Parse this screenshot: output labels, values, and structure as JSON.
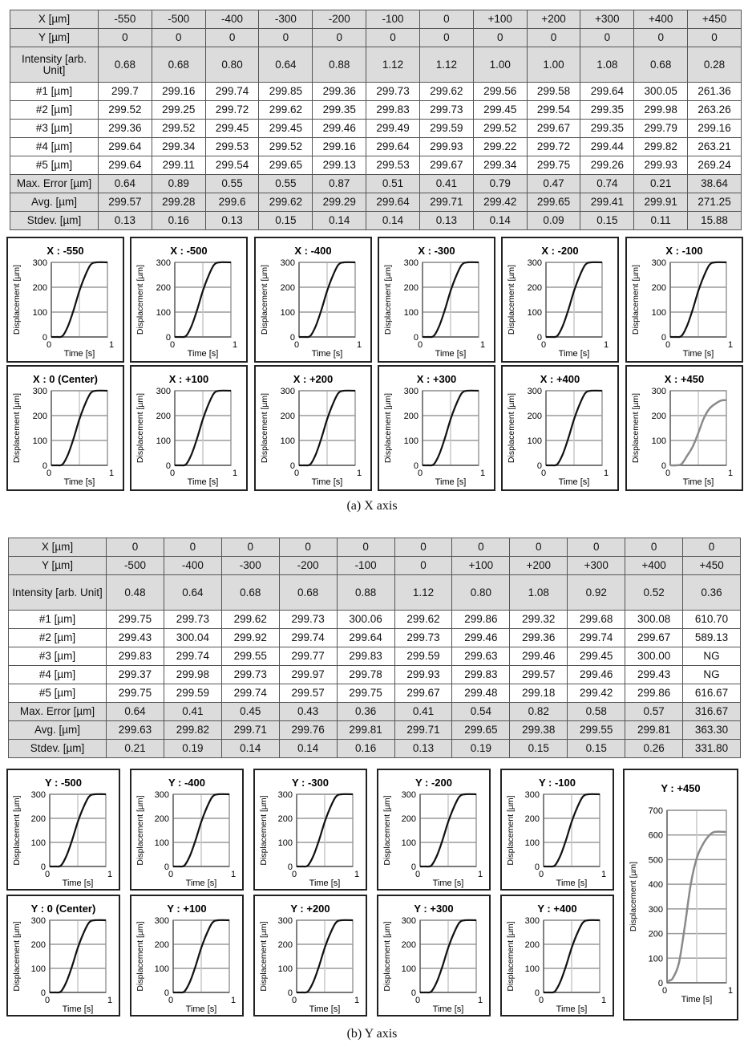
{
  "panel_a": {
    "caption": "(a) X axis",
    "table": {
      "rows": [
        {
          "label": "X [µm]",
          "values": [
            "-550",
            "-500",
            "-400",
            "-300",
            "-200",
            "-100",
            "0",
            "+100",
            "+200",
            "+300",
            "+400",
            "+450"
          ]
        },
        {
          "label": "Y [µm]",
          "values": [
            "0",
            "0",
            "0",
            "0",
            "0",
            "0",
            "0",
            "0",
            "0",
            "0",
            "0",
            "0"
          ]
        },
        {
          "label": "Intensity [arb. Unit]",
          "values": [
            "0.68",
            "0.68",
            "0.80",
            "0.64",
            "0.88",
            "1.12",
            "1.12",
            "1.00",
            "1.00",
            "1.08",
            "0.68",
            "0.28"
          ]
        },
        {
          "label": "#1 [µm]",
          "values": [
            "299.7",
            "299.16",
            "299.74",
            "299.85",
            "299.36",
            "299.73",
            "299.62",
            "299.56",
            "299.58",
            "299.64",
            "300.05",
            "261.36"
          ]
        },
        {
          "label": "#2 [µm]",
          "values": [
            "299.52",
            "299.25",
            "299.72",
            "299.62",
            "299.35",
            "299.83",
            "299.73",
            "299.45",
            "299.54",
            "299.35",
            "299.98",
            "263.26"
          ]
        },
        {
          "label": "#3 [µm]",
          "values": [
            "299.36",
            "299.52",
            "299.45",
            "299.45",
            "299.46",
            "299.49",
            "299.59",
            "299.52",
            "299.67",
            "299.35",
            "299.79",
            "299.16"
          ]
        },
        {
          "label": "#4 [µm]",
          "values": [
            "299.64",
            "299.34",
            "299.53",
            "299.52",
            "299.16",
            "299.64",
            "299.93",
            "299.22",
            "299.72",
            "299.44",
            "299.82",
            "263.21"
          ]
        },
        {
          "label": "#5 [µm]",
          "values": [
            "299.64",
            "299.11",
            "299.54",
            "299.65",
            "299.13",
            "299.53",
            "299.67",
            "299.34",
            "299.75",
            "299.26",
            "299.93",
            "269.24"
          ]
        },
        {
          "label": "Max. Error [µm]",
          "values": [
            "0.64",
            "0.89",
            "0.55",
            "0.55",
            "0.87",
            "0.51",
            "0.41",
            "0.79",
            "0.47",
            "0.74",
            "0.21",
            "38.64"
          ]
        },
        {
          "label": "Avg. [µm]",
          "values": [
            "299.57",
            "299.28",
            "299.6",
            "299.62",
            "299.29",
            "299.64",
            "299.71",
            "299.42",
            "299.65",
            "299.41",
            "299.91",
            "271.25"
          ]
        },
        {
          "label": "Stdev. [µm]",
          "values": [
            "0.13",
            "0.16",
            "0.13",
            "0.15",
            "0.14",
            "0.14",
            "0.13",
            "0.14",
            "0.09",
            "0.15",
            "0.11",
            "15.88"
          ]
        }
      ]
    }
  },
  "panel_b": {
    "caption": "(b) Y axis",
    "table": {
      "rows": [
        {
          "label": "X [µm]",
          "values": [
            "0",
            "0",
            "0",
            "0",
            "0",
            "0",
            "0",
            "0",
            "0",
            "0",
            "0"
          ]
        },
        {
          "label": "Y [µm]",
          "values": [
            "-500",
            "-400",
            "-300",
            "-200",
            "-100",
            "0",
            "+100",
            "+200",
            "+300",
            "+400",
            "+450"
          ]
        },
        {
          "label": "Intensity [arb. Unit]",
          "values": [
            "0.48",
            "0.64",
            "0.68",
            "0.68",
            "0.88",
            "1.12",
            "0.80",
            "1.08",
            "0.92",
            "0.52",
            "0.36"
          ]
        },
        {
          "label": "#1 [µm]",
          "values": [
            "299.75",
            "299.73",
            "299.62",
            "299.73",
            "300.06",
            "299.62",
            "299.86",
            "299.32",
            "299.68",
            "300.08",
            "610.70"
          ]
        },
        {
          "label": "#2 [µm]",
          "values": [
            "299.43",
            "300.04",
            "299.92",
            "299.74",
            "299.64",
            "299.73",
            "299.46",
            "299.36",
            "299.74",
            "299.67",
            "589.13"
          ]
        },
        {
          "label": "#3 [µm]",
          "values": [
            "299.83",
            "299.74",
            "299.55",
            "299.77",
            "299.83",
            "299.59",
            "299.63",
            "299.46",
            "299.45",
            "300.00",
            "NG"
          ]
        },
        {
          "label": "#4 [µm]",
          "values": [
            "299.37",
            "299.98",
            "299.73",
            "299.97",
            "299.78",
            "299.93",
            "299.83",
            "299.57",
            "299.46",
            "299.43",
            "NG"
          ]
        },
        {
          "label": "#5 [µm]",
          "values": [
            "299.75",
            "299.59",
            "299.74",
            "299.57",
            "299.75",
            "299.67",
            "299.48",
            "299.18",
            "299.42",
            "299.86",
            "616.67"
          ]
        },
        {
          "label": "Max. Error [µm]",
          "values": [
            "0.64",
            "0.41",
            "0.45",
            "0.43",
            "0.36",
            "0.41",
            "0.54",
            "0.82",
            "0.58",
            "0.57",
            "316.67"
          ]
        },
        {
          "label": "Avg. [µm]",
          "values": [
            "299.63",
            "299.82",
            "299.71",
            "299.76",
            "299.81",
            "299.71",
            "299.65",
            "299.38",
            "299.55",
            "299.81",
            "363.30"
          ]
        },
        {
          "label": "Stdev. [µm]",
          "values": [
            "0.21",
            "0.19",
            "0.14",
            "0.14",
            "0.16",
            "0.13",
            "0.19",
            "0.15",
            "0.15",
            "0.26",
            "331.80"
          ]
        }
      ]
    }
  },
  "chart_data": {
    "type": "line",
    "xlabel": "Time [s]",
    "ylabel": "Displacement [µm]",
    "xlim": [
      0,
      1
    ],
    "xticks": [
      "0",
      "1"
    ],
    "grid": true,
    "colors": {
      "normal": "#111111",
      "failed": "#8a8a8a"
    },
    "standard_curve": [
      [
        0,
        0
      ],
      [
        0.1,
        0
      ],
      [
        0.2,
        4
      ],
      [
        0.3,
        45
      ],
      [
        0.4,
        110
      ],
      [
        0.5,
        185
      ],
      [
        0.6,
        245
      ],
      [
        0.7,
        290
      ],
      [
        0.8,
        300
      ],
      [
        1,
        300
      ]
    ],
    "panel_a_charts": [
      {
        "title": "X : -550",
        "ylim": [
          0,
          300
        ],
        "yticks": [
          "0",
          "100",
          "200",
          "300"
        ],
        "curve": "standard"
      },
      {
        "title": "X : -500",
        "ylim": [
          0,
          300
        ],
        "yticks": [
          "0",
          "100",
          "200",
          "300"
        ],
        "curve": "standard"
      },
      {
        "title": "X : -400",
        "ylim": [
          0,
          300
        ],
        "yticks": [
          "0",
          "100",
          "200",
          "300"
        ],
        "curve": "standard"
      },
      {
        "title": "X : -300",
        "ylim": [
          0,
          300
        ],
        "yticks": [
          "0",
          "100",
          "200",
          "300"
        ],
        "curve": "standard"
      },
      {
        "title": "X : -200",
        "ylim": [
          0,
          300
        ],
        "yticks": [
          "0",
          "100",
          "200",
          "300"
        ],
        "curve": "standard"
      },
      {
        "title": "X : -100",
        "ylim": [
          0,
          300
        ],
        "yticks": [
          "0",
          "100",
          "200",
          "300"
        ],
        "curve": "standard"
      },
      {
        "title": "X : 0 (Center)",
        "ylim": [
          0,
          300
        ],
        "yticks": [
          "0",
          "100",
          "200",
          "300"
        ],
        "curve": "standard"
      },
      {
        "title": "X : +100",
        "ylim": [
          0,
          300
        ],
        "yticks": [
          "0",
          "100",
          "200",
          "300"
        ],
        "curve": "standard"
      },
      {
        "title": "X : +200",
        "ylim": [
          0,
          300
        ],
        "yticks": [
          "0",
          "100",
          "200",
          "300"
        ],
        "curve": "standard"
      },
      {
        "title": "X : +300",
        "ylim": [
          0,
          300
        ],
        "yticks": [
          "0",
          "100",
          "200",
          "300"
        ],
        "curve": "standard"
      },
      {
        "title": "X : +400",
        "ylim": [
          0,
          300
        ],
        "yticks": [
          "0",
          "100",
          "200",
          "300"
        ],
        "curve": "standard"
      },
      {
        "title": "X : +450",
        "ylim": [
          0,
          300
        ],
        "yticks": [
          "0",
          "100",
          "200",
          "300"
        ],
        "failed": true,
        "points": [
          [
            0,
            0
          ],
          [
            0.1,
            0
          ],
          [
            0.2,
            5
          ],
          [
            0.3,
            38
          ],
          [
            0.4,
            75
          ],
          [
            0.5,
            130
          ],
          [
            0.6,
            190
          ],
          [
            0.7,
            228
          ],
          [
            0.8,
            247
          ],
          [
            0.9,
            260
          ],
          [
            1,
            262
          ]
        ]
      }
    ],
    "panel_b_charts": [
      {
        "title": "Y : -500",
        "ylim": [
          0,
          300
        ],
        "yticks": [
          "0",
          "100",
          "200",
          "300"
        ],
        "curve": "standard"
      },
      {
        "title": "Y : -400",
        "ylim": [
          0,
          300
        ],
        "yticks": [
          "0",
          "100",
          "200",
          "300"
        ],
        "curve": "standard"
      },
      {
        "title": "Y : -300",
        "ylim": [
          0,
          300
        ],
        "yticks": [
          "0",
          "100",
          "200",
          "300"
        ],
        "curve": "standard"
      },
      {
        "title": "Y : -200",
        "ylim": [
          0,
          300
        ],
        "yticks": [
          "0",
          "100",
          "200",
          "300"
        ],
        "curve": "standard"
      },
      {
        "title": "Y : -100",
        "ylim": [
          0,
          300
        ],
        "yticks": [
          "0",
          "100",
          "200",
          "300"
        ],
        "curve": "standard"
      },
      {
        "title": "Y : 0 (Center)",
        "ylim": [
          0,
          300
        ],
        "yticks": [
          "0",
          "100",
          "200",
          "300"
        ],
        "curve": "standard"
      },
      {
        "title": "Y : +100",
        "ylim": [
          0,
          300
        ],
        "yticks": [
          "0",
          "100",
          "200",
          "300"
        ],
        "curve": "standard"
      },
      {
        "title": "Y : +200",
        "ylim": [
          0,
          300
        ],
        "yticks": [
          "0",
          "100",
          "200",
          "300"
        ],
        "curve": "standard"
      },
      {
        "title": "Y : +300",
        "ylim": [
          0,
          300
        ],
        "yticks": [
          "0",
          "100",
          "200",
          "300"
        ],
        "curve": "standard"
      },
      {
        "title": "Y : +400",
        "ylim": [
          0,
          300
        ],
        "yticks": [
          "0",
          "100",
          "200",
          "300"
        ],
        "curve": "standard"
      },
      {
        "title": "Y : +450",
        "ylim": [
          0,
          700
        ],
        "yticks": [
          "0",
          "100",
          "200",
          "300",
          "400",
          "500",
          "600",
          "700"
        ],
        "failed": true,
        "points": [
          [
            0,
            5
          ],
          [
            0.05,
            10
          ],
          [
            0.1,
            20
          ],
          [
            0.2,
            80
          ],
          [
            0.3,
            230
          ],
          [
            0.4,
            400
          ],
          [
            0.5,
            505
          ],
          [
            0.6,
            560
          ],
          [
            0.7,
            595
          ],
          [
            0.8,
            612
          ],
          [
            1,
            612
          ]
        ]
      }
    ]
  }
}
